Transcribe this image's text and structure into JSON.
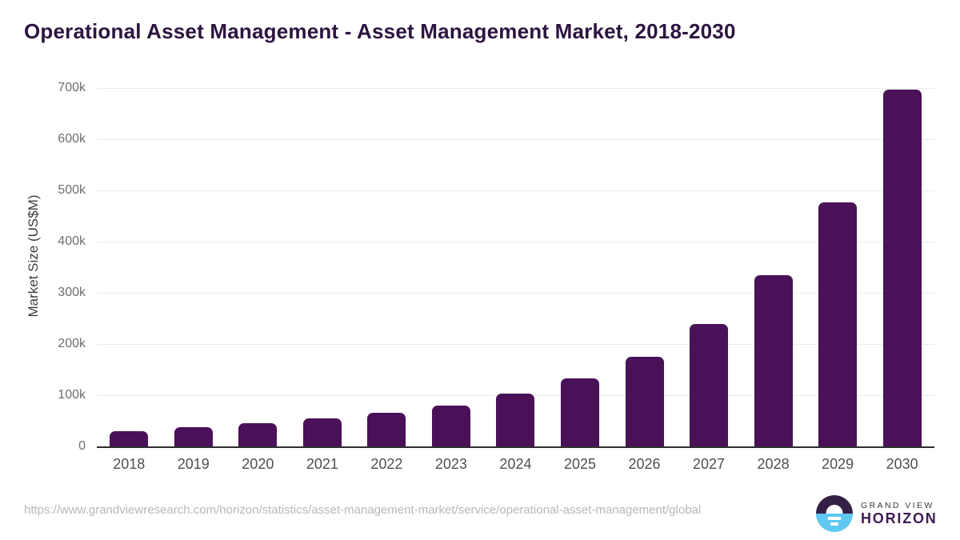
{
  "title": "Operational Asset Management - Asset Management Market, 2018-2030",
  "chart_data": {
    "type": "bar",
    "title": "Operational Asset Management - Asset Management Market, 2018-2030",
    "categories": [
      "2018",
      "2019",
      "2020",
      "2021",
      "2022",
      "2023",
      "2024",
      "2025",
      "2026",
      "2027",
      "2028",
      "2029",
      "2030"
    ],
    "values": [
      29000,
      37000,
      45000,
      54000,
      65000,
      80000,
      103000,
      133000,
      175000,
      239000,
      334000,
      476000,
      697000
    ],
    "xlabel": "",
    "ylabel": "Market Size (US$M)",
    "ylim": [
      0,
      700000
    ],
    "yticks": [
      0,
      100000,
      200000,
      300000,
      400000,
      500000,
      600000,
      700000
    ],
    "ytick_labels": [
      "0",
      "100k",
      "200k",
      "300k",
      "400k",
      "500k",
      "600k",
      "700k"
    ],
    "grid": true,
    "legend": false,
    "bar_color": "#4a1158"
  },
  "footer": {
    "source_url": "https://www.grandviewresearch.com/horizon/statistics/asset-management-market/service/operational-asset-management/global",
    "logo": {
      "top_text": "GRAND VIEW",
      "bottom_text": "HORIZON"
    }
  },
  "colors": {
    "title": "#2c1440",
    "bar": "#4a1158",
    "gridline": "#e9e9e9",
    "axis_line": "#2d2d2d",
    "y_tick_label": "#6f6f6f",
    "x_tick_label": "#4f4f4f",
    "logo_blue": "#5ec8f2",
    "logo_dark_purple": "#342046",
    "logo_text_top": "#3a3a4a",
    "logo_text_bottom": "#3f1b55"
  }
}
